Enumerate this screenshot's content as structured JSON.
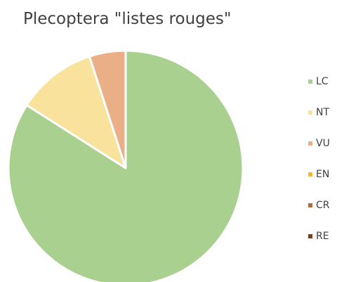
{
  "chart_data": {
    "type": "pie",
    "title": "Plecoptera \"listes rouges\"",
    "categories": [
      "LC",
      "NT",
      "VU",
      "EN",
      "CR",
      "RE"
    ],
    "values": [
      84,
      11,
      5,
      0,
      0,
      0
    ],
    "colors": [
      "#a9d08e",
      "#f9e29c",
      "#ebaf87",
      "#f5b731",
      "#b4683b",
      "#7b3f17"
    ],
    "start_angle_deg": 0,
    "direction": "clockwise",
    "legend_position": "right"
  }
}
